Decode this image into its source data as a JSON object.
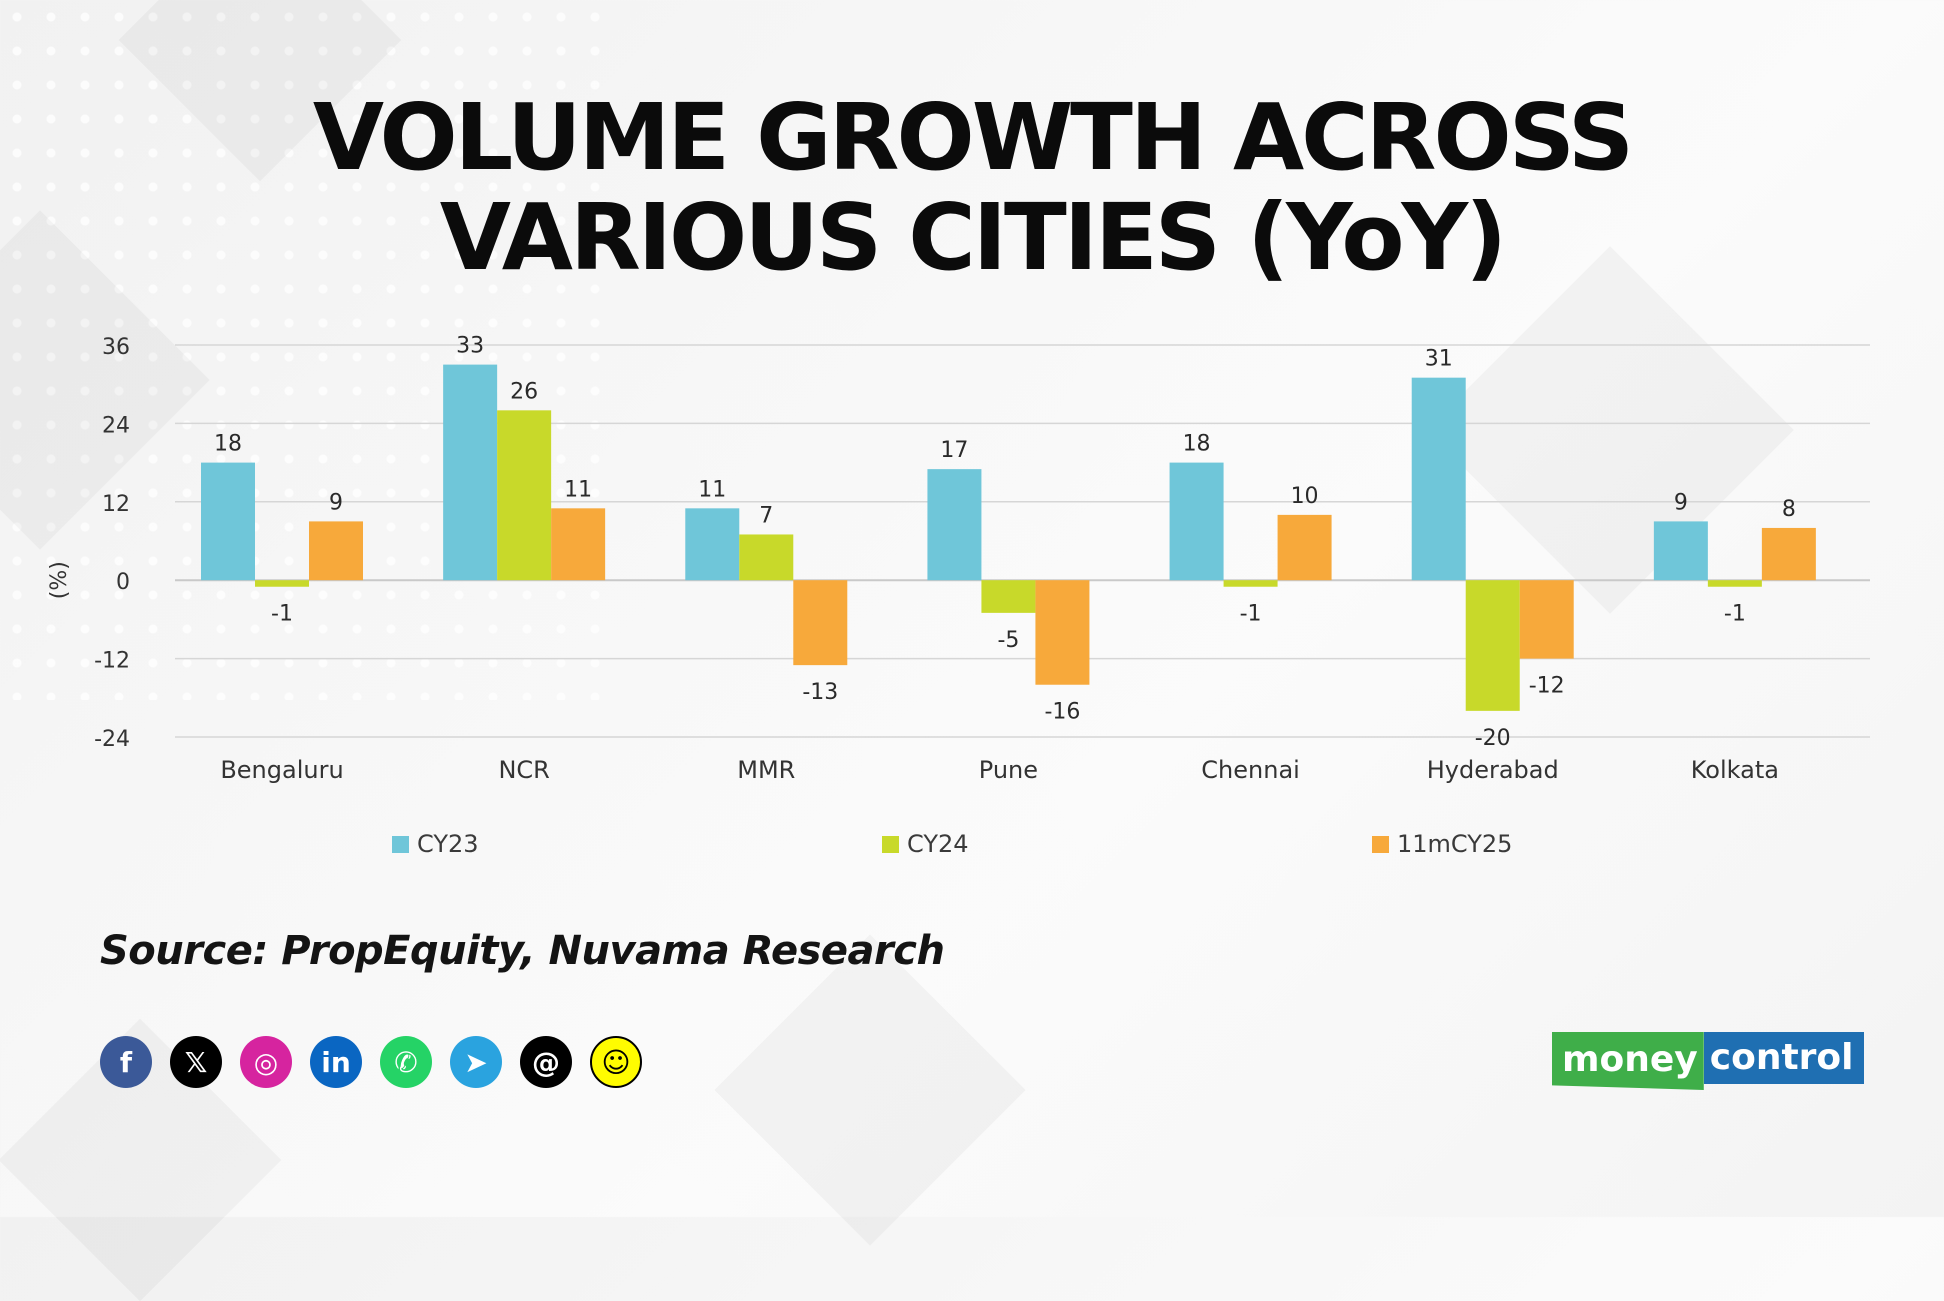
{
  "title": {
    "line1": "VOLUME GROWTH ACROSS",
    "line2": "VARIOUS CITIES (YoY)"
  },
  "chart_data": {
    "type": "bar",
    "ylabel": "(%)",
    "ylim": [
      -24,
      36
    ],
    "yticks": [
      36,
      24,
      12,
      0,
      -12,
      -24
    ],
    "grid": true,
    "legend_position": "bottom",
    "categories": [
      "Bengaluru",
      "NCR",
      "MMR",
      "Pune",
      "Chennai",
      "Hyderabad",
      "Kolkata"
    ],
    "series": [
      {
        "name": "CY23",
        "color": "#6fc6d9",
        "values": [
          18,
          33,
          11,
          17,
          18,
          31,
          9
        ]
      },
      {
        "name": "CY24",
        "color": "#c8d92a",
        "values": [
          -1,
          26,
          7,
          -5,
          -1,
          -20,
          -1
        ]
      },
      {
        "name": "11mCY25",
        "color": "#f7a93b",
        "values": [
          9,
          11,
          -13,
          -16,
          10,
          -12,
          8
        ]
      }
    ]
  },
  "source": "Source: PropEquity, Nuvama Research",
  "social": [
    {
      "icon": "facebook-icon",
      "glyph": "f",
      "color": "#3b5998"
    },
    {
      "icon": "x-icon",
      "glyph": "𝕏",
      "color": "#000000"
    },
    {
      "icon": "instagram-icon",
      "glyph": "◎",
      "color": "#d6249f"
    },
    {
      "icon": "linkedin-icon",
      "glyph": "in",
      "color": "#0a66c2"
    },
    {
      "icon": "whatsapp-icon",
      "glyph": "✆",
      "color": "#25d366"
    },
    {
      "icon": "telegram-icon",
      "glyph": "➤",
      "color": "#2aa3df"
    },
    {
      "icon": "threads-icon",
      "glyph": "@",
      "color": "#000000"
    },
    {
      "icon": "snapchat-icon",
      "glyph": "☺",
      "color": "#fffc00"
    }
  ],
  "logo": {
    "part1": "money",
    "part2": "control"
  }
}
